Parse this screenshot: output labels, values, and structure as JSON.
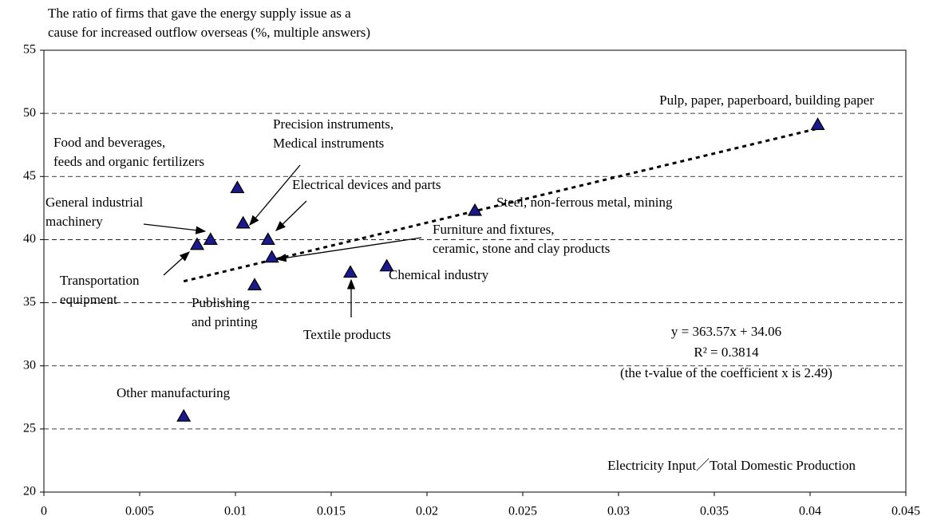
{
  "chart_data": {
    "type": "scatter",
    "y_axis_title": [
      "The ratio of firms that gave the energy supply issue as a",
      "cause for increased outflow overseas (%, multiple answers)"
    ],
    "x_axis_title": "Electricity Input／Total Domestic Production",
    "labels": [
      [
        "Pulp, paper, paperboard, building paper"
      ],
      [
        "Steel, non-ferrous metal, mining"
      ],
      [
        "Chemical industry"
      ],
      [
        "Textile products"
      ],
      [
        "Food and beverages,",
        "feeds and organic fertilizers"
      ],
      [
        "Precision instruments,",
        "Medical instruments"
      ],
      [
        "Electrical devices and parts"
      ],
      [
        "Furniture and fixtures,",
        "ceramic, stone and clay products"
      ],
      [
        "General industrial",
        "machinery"
      ],
      [
        "Transportation",
        "equipment"
      ],
      [
        "Publishing",
        "and printing"
      ],
      [
        "Other manufacturing"
      ]
    ],
    "x": [
      0.0404,
      0.0225,
      0.0179,
      0.016,
      0.0101,
      0.0104,
      0.0117,
      0.0119,
      0.0087,
      0.008,
      0.011,
      0.0073
    ],
    "values": [
      49.1,
      42.3,
      37.9,
      37.4,
      44.1,
      41.3,
      40.0,
      38.6,
      40.0,
      39.6,
      36.4,
      26.0
    ],
    "color": "#1a1a8c",
    "trendline": {
      "x": [
        0.0073,
        0.0404
      ],
      "y": [
        36.7,
        48.8
      ]
    },
    "annotation": [
      "y = 363.57x + 34.06",
      "R² = 0.3814",
      "(the t-value of the coefficient x is 2.49)"
    ],
    "xlim": [
      0,
      0.045
    ],
    "xticks": [
      0,
      0.005,
      0.01,
      0.015,
      0.02,
      0.025,
      0.03,
      0.035,
      0.04,
      0.045
    ],
    "ylim": [
      20,
      55
    ],
    "yticks": [
      20,
      25,
      30,
      35,
      40,
      45,
      50,
      55
    ],
    "grid": true
  }
}
